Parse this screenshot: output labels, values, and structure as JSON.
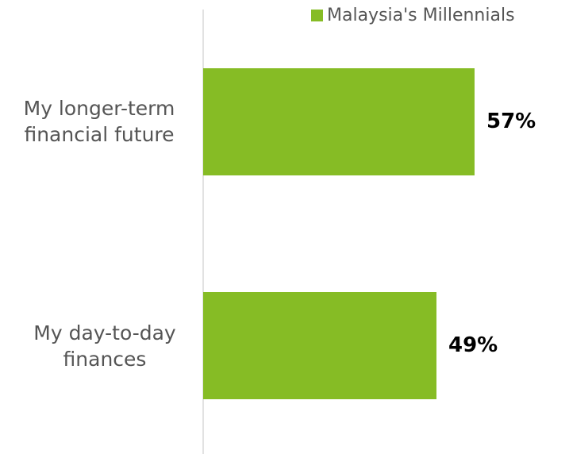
{
  "chart_data": {
    "type": "bar",
    "orientation": "horizontal",
    "categories": [
      "My longer-term financial future",
      "My day-to-day finances"
    ],
    "series": [
      {
        "name": "Malaysia's Millennials",
        "color": "#86bc25",
        "values": [
          57,
          49
        ],
        "value_labels": [
          "57%",
          "49%"
        ]
      }
    ]
  }
}
